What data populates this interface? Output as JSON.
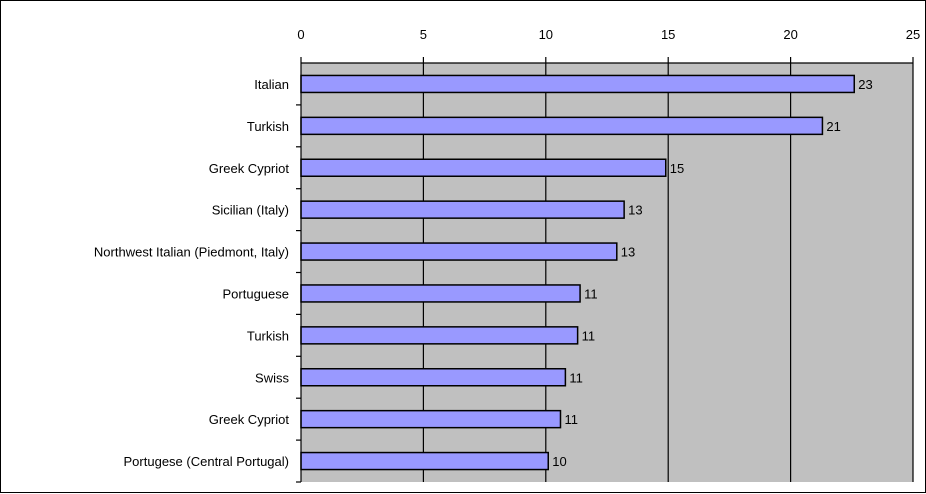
{
  "chart_data": {
    "type": "bar",
    "orientation": "horizontal",
    "categories": [
      "Italian",
      "Turkish",
      "Greek Cypriot",
      "Sicilian (Italy)",
      "Northwest Italian (Piedmont, Italy)",
      "Portuguese",
      "Turkish",
      "Swiss",
      "Greek Cypriot",
      "Portugese (Central Portugal)"
    ],
    "values": [
      22.6,
      21.3,
      14.9,
      13.2,
      12.9,
      11.4,
      11.3,
      10.8,
      10.6,
      10.1
    ],
    "data_labels": [
      "23",
      "21",
      "15",
      "13",
      "13",
      "11",
      "11",
      "11",
      "11",
      "10"
    ],
    "xlim": [
      0,
      25
    ],
    "x_ticks": [
      "0",
      "5",
      "10",
      "15",
      "20",
      "25"
    ],
    "x_tick_values": [
      0,
      5,
      10,
      15,
      20,
      25
    ],
    "x_axis_position": "top",
    "grid": true,
    "legend": "none",
    "title": "",
    "xlabel": "",
    "ylabel": "",
    "colors": {
      "bar_fill": "#9999ff",
      "bar_stroke": "#000000",
      "plot_background": "#c0c0c0",
      "gridline": "#000000"
    }
  }
}
